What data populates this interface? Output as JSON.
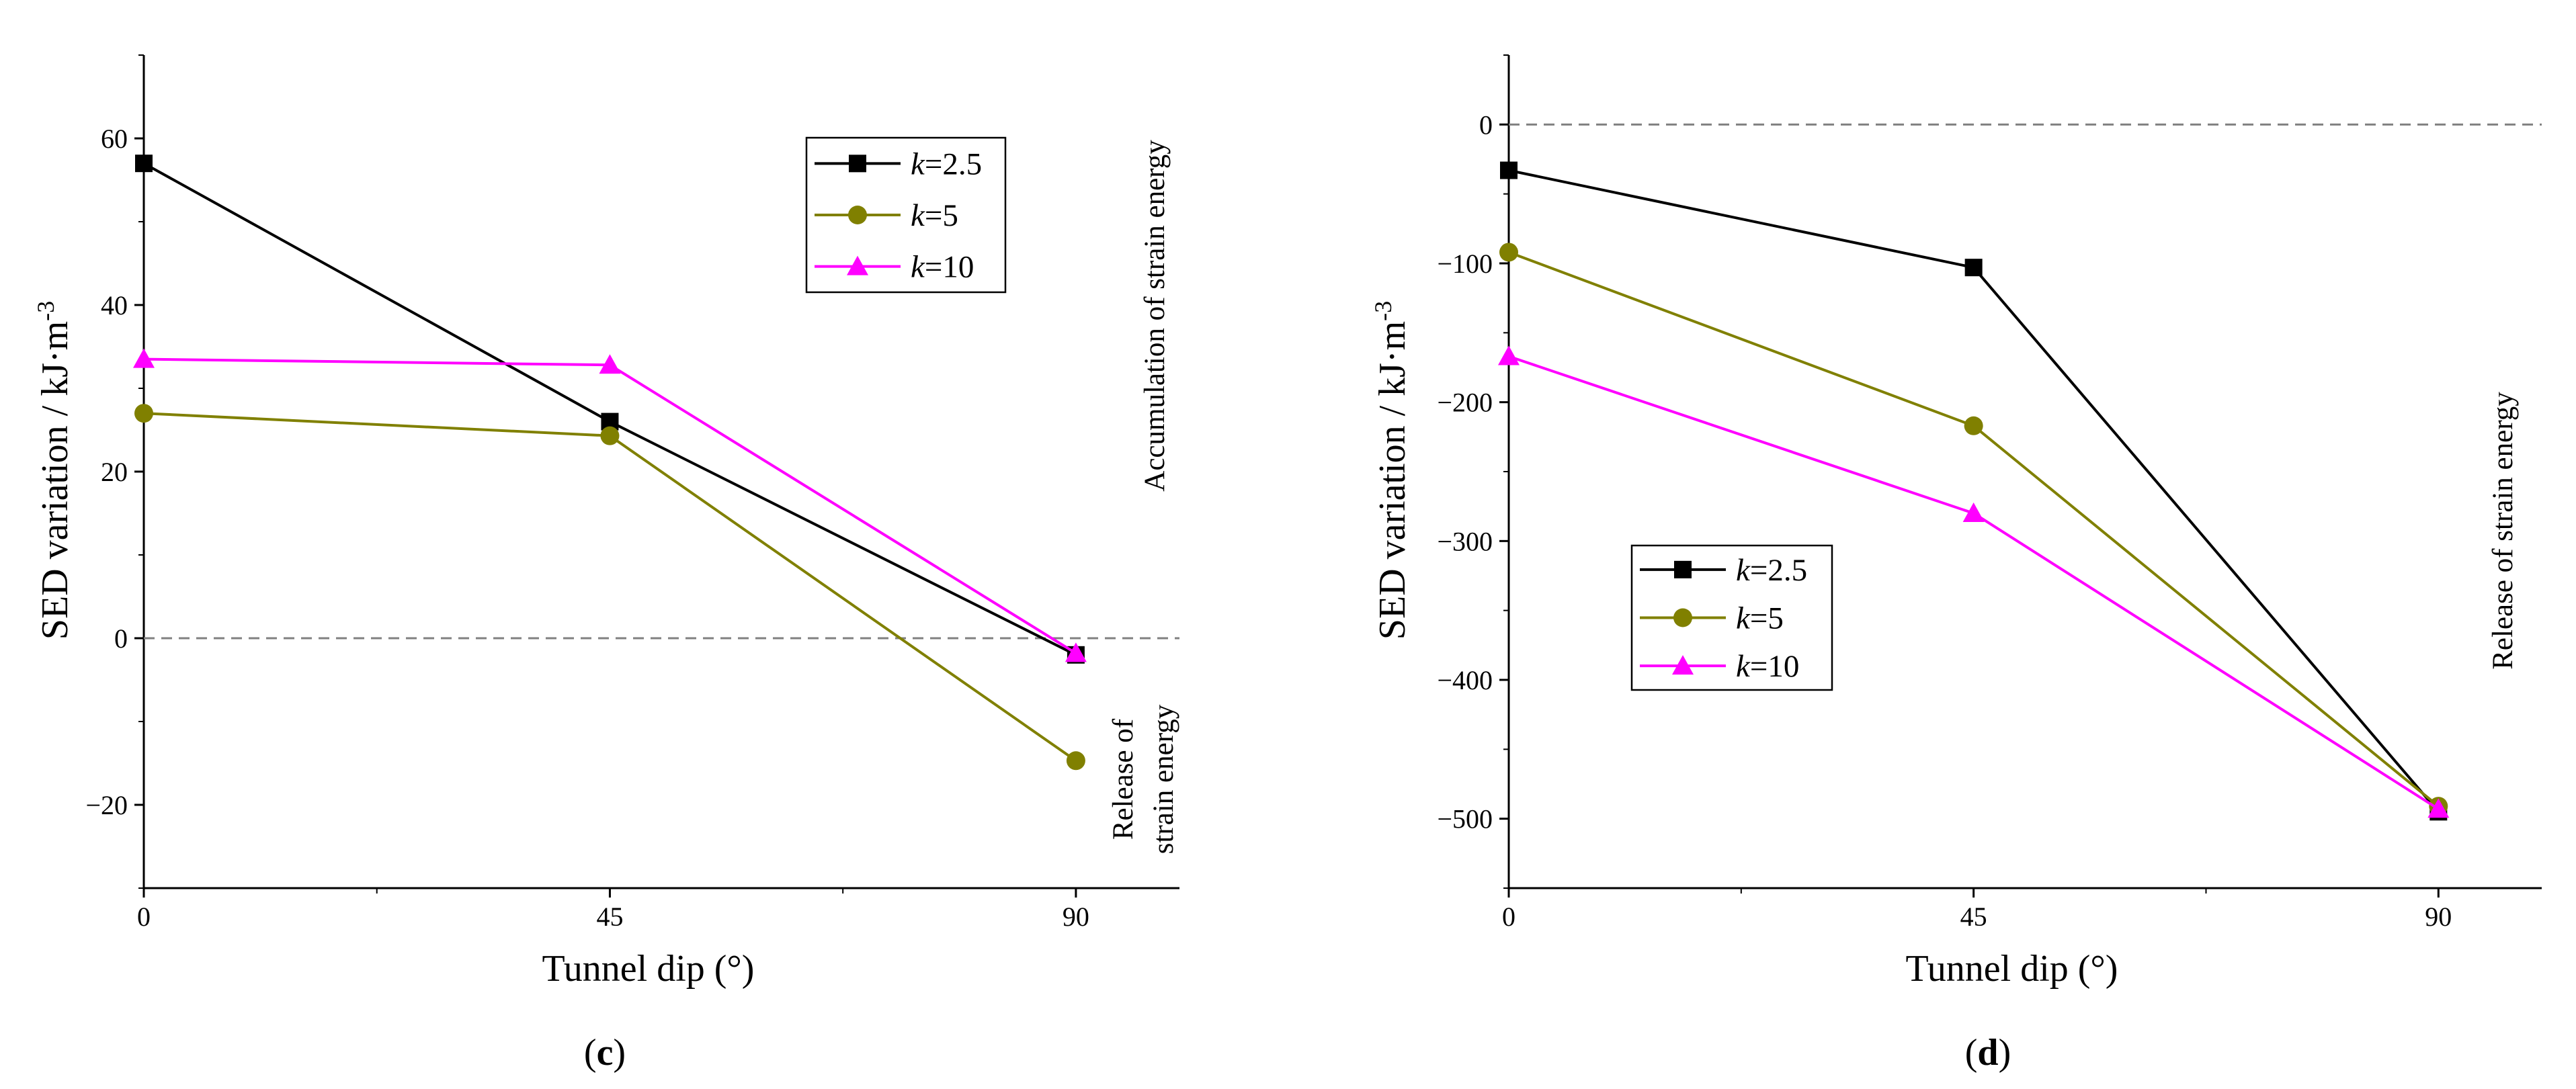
{
  "colors": {
    "k25": "#000000",
    "k5": "#808000",
    "k10": "#ff00ff",
    "zero_line": "#808080",
    "axis": "#000000"
  },
  "chart_data": [
    {
      "type": "line",
      "panel_label": "(c)",
      "panel_letter": "c",
      "title": "",
      "xlabel": "Tunnel dip (°)",
      "ylabel_main": "SED variation / kJ·m",
      "ylabel_exp": "-3",
      "xlim": [
        0,
        100
      ],
      "ylim": [
        -30,
        70
      ],
      "xticks": [
        0,
        45,
        90
      ],
      "xtick_labels": [
        "0",
        "45",
        "90"
      ],
      "yticks": [
        -20,
        0,
        20,
        40,
        60
      ],
      "ytick_labels": [
        "−20",
        "0",
        "20",
        "40",
        "60"
      ],
      "x": [
        0,
        45,
        90
      ],
      "series": [
        {
          "key": "k25",
          "name": "k=2.5",
          "name_italic": "k",
          "name_rest": "=2.5",
          "marker": "square",
          "values": [
            57,
            26,
            -2
          ]
        },
        {
          "key": "k5",
          "name": "k=5",
          "name_italic": "k",
          "name_rest": "=5",
          "marker": "circle",
          "values": [
            27,
            24.3,
            -14.7
          ]
        },
        {
          "key": "k10",
          "name": "k=10",
          "name_italic": "k",
          "name_rest": "=10",
          "marker": "triangle",
          "values": [
            33.5,
            32.8,
            -1.8
          ]
        }
      ],
      "reference_line": 0,
      "annotations": {
        "accumulation": "Accumulation  of strain energy",
        "release_line1": "Release of",
        "release_line2": "strain energy"
      },
      "legend_position": "top-right"
    },
    {
      "type": "line",
      "panel_label": "(d)",
      "panel_letter": "d",
      "title": "",
      "xlabel": "Tunnel dip (°)",
      "ylabel_main": "SED variation / kJ·m",
      "ylabel_exp": "-3",
      "xlim": [
        0,
        100
      ],
      "ylim": [
        -550,
        50
      ],
      "xticks": [
        0,
        45,
        90
      ],
      "xtick_labels": [
        "0",
        "45",
        "90"
      ],
      "yticks": [
        -500,
        -400,
        -300,
        -200,
        -100,
        0
      ],
      "ytick_labels": [
        "−500",
        "−400",
        "−300",
        "−200",
        "−100",
        "0"
      ],
      "x": [
        0,
        45,
        90
      ],
      "series": [
        {
          "key": "k25",
          "name": "k=2.5",
          "name_italic": "k",
          "name_rest": "=2.5",
          "marker": "square",
          "values": [
            -33,
            -103,
            -495
          ]
        },
        {
          "key": "k5",
          "name": "k=5",
          "name_italic": "k",
          "name_rest": "=5",
          "marker": "circle",
          "values": [
            -92,
            -217,
            -491
          ]
        },
        {
          "key": "k10",
          "name": "k=10",
          "name_italic": "k",
          "name_rest": "=10",
          "marker": "triangle",
          "values": [
            -167,
            -280,
            -493
          ]
        }
      ],
      "reference_line": 0,
      "annotations": {
        "release": "Release of strain energy"
      },
      "legend_position": "center-left"
    }
  ]
}
